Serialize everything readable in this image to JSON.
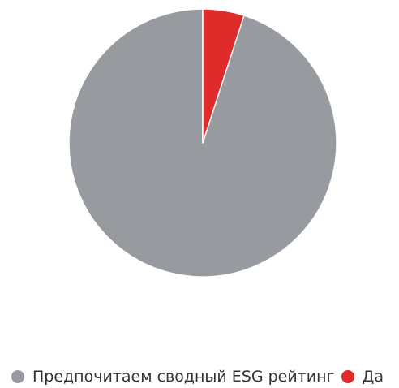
{
  "chart_data": {
    "type": "pie",
    "slices": [
      {
        "label": "Предпочитаем сводный ESG рейтинг",
        "value": 95,
        "color": "#979a9f"
      },
      {
        "label": "Да",
        "value": 5,
        "color": "#e02b2b"
      }
    ],
    "start_angle_deg": 0,
    "direction": "counterclockwise",
    "slice_border_color": "#ffffff",
    "legend_position": "bottom"
  }
}
